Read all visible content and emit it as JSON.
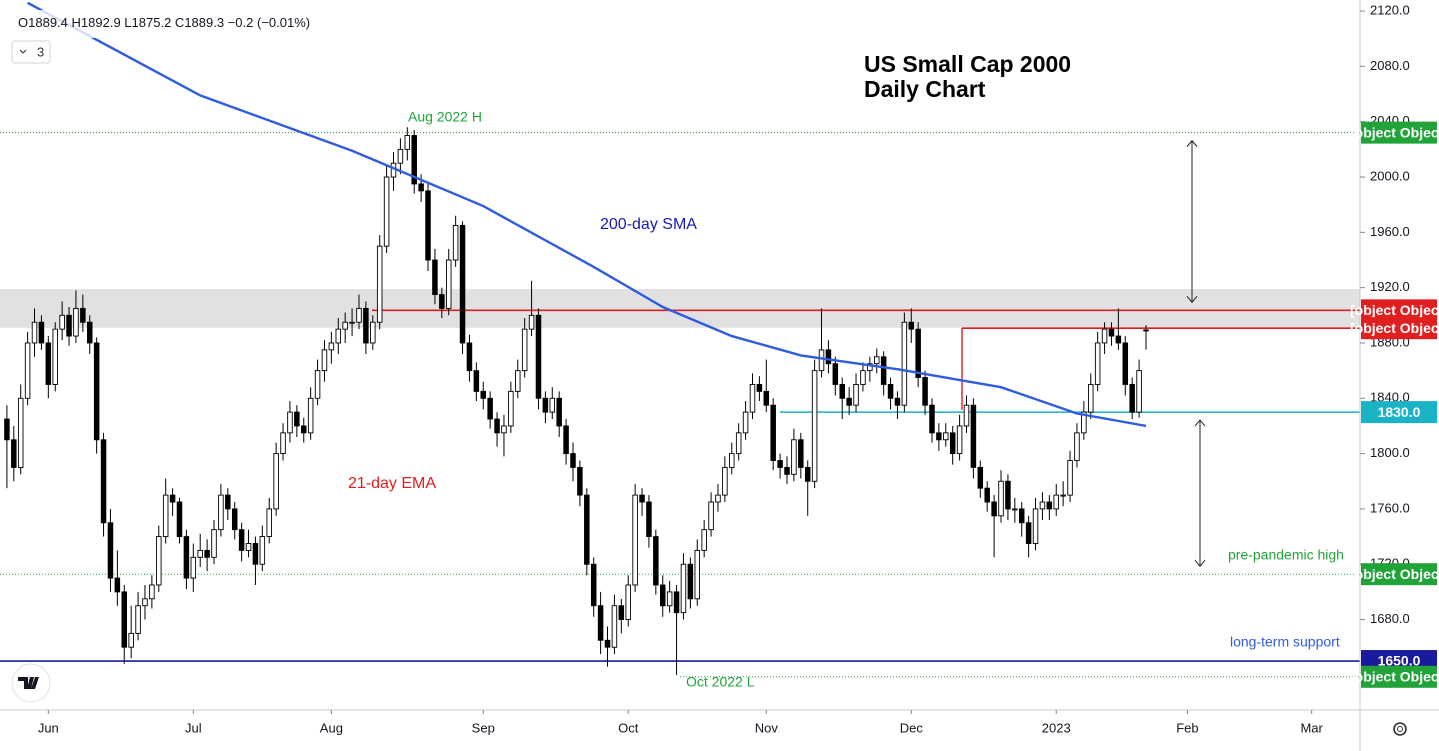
{
  "header": {
    "letters": [
      "O",
      "H",
      "L",
      "C"
    ],
    "change": "−0.2",
    "change_pct": "(−0.01%)",
    "indicators": "3"
  },
  "chart_data": {
    "type": "candlestick",
    "title": "US Small Cap 2000",
    "subtitle": "Daily Chart",
    "annotations": [
      "Aug 2022 H",
      "200-day SMA",
      "21-day EMA",
      "pre-pandemic high",
      "long-term support",
      "Oct 2022 L"
    ],
    "up_color": "#ffffff",
    "down_color": "#000000",
    "ylim": [
      1614.6,
      2128
    ],
    "yticks": [
      {
        "value": 1680,
        "label": "1680.0"
      },
      {
        "value": 1720,
        "label": "1720.0"
      },
      {
        "value": 1760,
        "label": "1760.0"
      },
      {
        "value": 1800,
        "label": "1800.0"
      },
      {
        "value": 1840,
        "label": "1840.0"
      },
      {
        "value": 1880,
        "label": "1880.0"
      },
      {
        "value": 1920,
        "label": "1920.0"
      },
      {
        "value": 1960,
        "label": "1960.0"
      },
      {
        "value": 2000,
        "label": "2000.0"
      },
      {
        "value": 2040,
        "label": "2040.0"
      },
      {
        "value": 2080,
        "label": "2080.0"
      },
      {
        "value": 2120,
        "label": "2120.0"
      }
    ],
    "xlim": [
      -1,
      196
    ],
    "xticks": [
      {
        "value": 6,
        "label": "Jun"
      },
      {
        "value": 27,
        "label": "Jul"
      },
      {
        "value": 47,
        "label": "Aug"
      },
      {
        "value": 69,
        "label": "Sep"
      },
      {
        "value": 90,
        "label": "Oct"
      },
      {
        "value": 110,
        "label": "Nov"
      },
      {
        "value": 131,
        "label": "Dec"
      },
      {
        "value": 152,
        "label": "2023"
      },
      {
        "value": 171,
        "label": "Feb"
      },
      {
        "value": 189,
        "label": "Mar"
      }
    ],
    "zone": [
      1891,
      1919
    ],
    "sma": {
      "color": "#2f5be0",
      "x": [
        3,
        28,
        50,
        69,
        85,
        95,
        105,
        115,
        129,
        144,
        155,
        165
      ],
      "values": [
        2126,
        2059,
        2019,
        1979,
        1935,
        1906,
        1885,
        1871,
        1861,
        1848,
        1829,
        1820
      ]
    },
    "levels": [
      {
        "value": 2032.1,
        "color": "#21a33a",
        "style": "dotted"
      },
      {
        "value": 1903.6,
        "color": "#e02020",
        "style": "solid"
      },
      {
        "value": 1890.7,
        "color": "#e02020",
        "style": "solid"
      },
      {
        "value": 1830,
        "label": "1830.0",
        "color": "#1ab3c6",
        "style": "solid"
      },
      {
        "value": 1712.8,
        "color": "#21a33a",
        "style": "dotted"
      },
      {
        "value": 1650,
        "label": "1650.0",
        "color": "#1a1a9e",
        "style": "solid"
      },
      {
        "value": 1638.6,
        "color": "#21a33a",
        "style": "dotted"
      }
    ],
    "ohlc": [
      [
        1825,
        1835,
        1775,
        1810
      ],
      [
        1810,
        1820,
        1780,
        1790
      ],
      [
        1790,
        1850,
        1785,
        1840
      ],
      [
        1840,
        1888,
        1835,
        1880
      ],
      [
        1880,
        1905,
        1870,
        1895
      ],
      [
        1895,
        1900,
        1875,
        1880
      ],
      [
        1880,
        1885,
        1840,
        1850
      ],
      [
        1850,
        1895,
        1845,
        1890
      ],
      [
        1890,
        1910,
        1882,
        1900
      ],
      [
        1900,
        1906,
        1878,
        1885
      ],
      [
        1885,
        1918,
        1880,
        1905
      ],
      [
        1905,
        1915,
        1888,
        1895
      ],
      [
        1895,
        1900,
        1872,
        1880
      ],
      [
        1880,
        1884,
        1800,
        1810
      ],
      [
        1810,
        1815,
        1740,
        1750
      ],
      [
        1750,
        1760,
        1700,
        1710
      ],
      [
        1710,
        1730,
        1690,
        1700
      ],
      [
        1700,
        1705,
        1648,
        1660
      ],
      [
        1660,
        1690,
        1652,
        1670
      ],
      [
        1670,
        1700,
        1665,
        1690
      ],
      [
        1690,
        1705,
        1680,
        1695
      ],
      [
        1695,
        1712,
        1688,
        1705
      ],
      [
        1705,
        1748,
        1700,
        1740
      ],
      [
        1740,
        1782,
        1735,
        1770
      ],
      [
        1770,
        1775,
        1755,
        1765
      ],
      [
        1765,
        1768,
        1735,
        1740
      ],
      [
        1740,
        1745,
        1702,
        1710
      ],
      [
        1710,
        1735,
        1700,
        1725
      ],
      [
        1725,
        1742,
        1718,
        1730
      ],
      [
        1730,
        1738,
        1715,
        1725
      ],
      [
        1725,
        1752,
        1720,
        1745
      ],
      [
        1745,
        1778,
        1740,
        1770
      ],
      [
        1770,
        1775,
        1752,
        1760
      ],
      [
        1760,
        1765,
        1738,
        1745
      ],
      [
        1745,
        1750,
        1722,
        1730
      ],
      [
        1730,
        1745,
        1725,
        1735
      ],
      [
        1735,
        1740,
        1705,
        1720
      ],
      [
        1720,
        1748,
        1715,
        1740
      ],
      [
        1740,
        1768,
        1735,
        1760
      ],
      [
        1760,
        1808,
        1755,
        1800
      ],
      [
        1800,
        1822,
        1795,
        1815
      ],
      [
        1815,
        1838,
        1808,
        1830
      ],
      [
        1830,
        1835,
        1812,
        1820
      ],
      [
        1820,
        1826,
        1808,
        1815
      ],
      [
        1815,
        1848,
        1810,
        1840
      ],
      [
        1840,
        1868,
        1835,
        1860
      ],
      [
        1860,
        1882,
        1852,
        1875
      ],
      [
        1875,
        1888,
        1865,
        1880
      ],
      [
        1880,
        1898,
        1872,
        1890
      ],
      [
        1890,
        1902,
        1880,
        1895
      ],
      [
        1895,
        1905,
        1885,
        1895
      ],
      [
        1895,
        1915,
        1890,
        1905
      ],
      [
        1905,
        1910,
        1872,
        1880
      ],
      [
        1880,
        1900,
        1875,
        1895
      ],
      [
        1895,
        1958,
        1890,
        1950
      ],
      [
        1950,
        2008,
        1945,
        2000
      ],
      [
        2000,
        2018,
        1990,
        2010
      ],
      [
        2010,
        2028,
        2002,
        2020
      ],
      [
        2020,
        2036,
        2012,
        2030
      ],
      [
        2030,
        2034,
        1988,
        1995
      ],
      [
        1995,
        2002,
        1982,
        1990
      ],
      [
        1990,
        1995,
        1932,
        1940
      ],
      [
        1940,
        1948,
        1908,
        1915
      ],
      [
        1915,
        1920,
        1898,
        1905
      ],
      [
        1905,
        1948,
        1900,
        1940
      ],
      [
        1940,
        1972,
        1935,
        1965
      ],
      [
        1965,
        1968,
        1872,
        1880
      ],
      [
        1880,
        1886,
        1852,
        1860
      ],
      [
        1860,
        1866,
        1838,
        1845
      ],
      [
        1845,
        1852,
        1832,
        1840
      ],
      [
        1840,
        1845,
        1818,
        1825
      ],
      [
        1825,
        1830,
        1805,
        1815
      ],
      [
        1815,
        1828,
        1798,
        1820
      ],
      [
        1820,
        1852,
        1815,
        1845
      ],
      [
        1845,
        1868,
        1840,
        1860
      ],
      [
        1860,
        1898,
        1855,
        1890
      ],
      [
        1890,
        1925,
        1885,
        1900
      ],
      [
        1900,
        1905,
        1832,
        1840
      ],
      [
        1840,
        1845,
        1822,
        1830
      ],
      [
        1830,
        1848,
        1825,
        1840
      ],
      [
        1840,
        1845,
        1812,
        1820
      ],
      [
        1820,
        1825,
        1792,
        1800
      ],
      [
        1800,
        1808,
        1780,
        1790
      ],
      [
        1790,
        1795,
        1762,
        1770
      ],
      [
        1770,
        1775,
        1712,
        1720
      ],
      [
        1720,
        1725,
        1682,
        1690
      ],
      [
        1690,
        1700,
        1655,
        1665
      ],
      [
        1665,
        1675,
        1646,
        1660
      ],
      [
        1660,
        1698,
        1655,
        1690
      ],
      [
        1690,
        1695,
        1670,
        1680
      ],
      [
        1680,
        1712,
        1675,
        1705
      ],
      [
        1705,
        1778,
        1700,
        1770
      ],
      [
        1770,
        1775,
        1755,
        1765
      ],
      [
        1765,
        1770,
        1732,
        1740
      ],
      [
        1740,
        1745,
        1698,
        1705
      ],
      [
        1705,
        1712,
        1682,
        1690
      ],
      [
        1690,
        1708,
        1685,
        1700
      ],
      [
        1700,
        1705,
        1640,
        1685
      ],
      [
        1685,
        1728,
        1680,
        1720
      ],
      [
        1720,
        1725,
        1688,
        1695
      ],
      [
        1695,
        1738,
        1690,
        1730
      ],
      [
        1730,
        1752,
        1725,
        1745
      ],
      [
        1745,
        1772,
        1740,
        1765
      ],
      [
        1765,
        1778,
        1758,
        1770
      ],
      [
        1770,
        1798,
        1765,
        1790
      ],
      [
        1790,
        1808,
        1785,
        1800
      ],
      [
        1800,
        1822,
        1795,
        1815
      ],
      [
        1815,
        1838,
        1810,
        1830
      ],
      [
        1830,
        1858,
        1825,
        1850
      ],
      [
        1850,
        1856,
        1838,
        1845
      ],
      [
        1845,
        1868,
        1830,
        1835
      ],
      [
        1835,
        1840,
        1788,
        1795
      ],
      [
        1795,
        1800,
        1782,
        1790
      ],
      [
        1790,
        1798,
        1778,
        1785
      ],
      [
        1785,
        1818,
        1780,
        1810
      ],
      [
        1810,
        1815,
        1782,
        1790
      ],
      [
        1790,
        1795,
        1755,
        1780
      ],
      [
        1780,
        1868,
        1775,
        1860
      ],
      [
        1860,
        1905,
        1855,
        1875
      ],
      [
        1875,
        1882,
        1858,
        1865
      ],
      [
        1865,
        1870,
        1842,
        1850
      ],
      [
        1850,
        1855,
        1825,
        1840
      ],
      [
        1840,
        1848,
        1828,
        1835
      ],
      [
        1835,
        1858,
        1830,
        1850
      ],
      [
        1850,
        1866,
        1845,
        1860
      ],
      [
        1860,
        1870,
        1852,
        1865
      ],
      [
        1865,
        1876,
        1858,
        1870
      ],
      [
        1870,
        1874,
        1842,
        1850
      ],
      [
        1850,
        1855,
        1832,
        1840
      ],
      [
        1840,
        1845,
        1825,
        1835
      ],
      [
        1835,
        1902,
        1830,
        1895
      ],
      [
        1895,
        1905,
        1880,
        1890
      ],
      [
        1890,
        1895,
        1848,
        1855
      ],
      [
        1855,
        1860,
        1828,
        1835
      ],
      [
        1835,
        1840,
        1808,
        1815
      ],
      [
        1815,
        1822,
        1802,
        1810
      ],
      [
        1810,
        1822,
        1805,
        1815
      ],
      [
        1815,
        1820,
        1792,
        1800
      ],
      [
        1800,
        1828,
        1795,
        1820
      ],
      [
        1820,
        1842,
        1815,
        1835
      ],
      [
        1835,
        1840,
        1782,
        1790
      ],
      [
        1790,
        1795,
        1768,
        1775
      ],
      [
        1775,
        1780,
        1758,
        1765
      ],
      [
        1765,
        1770,
        1725,
        1755
      ],
      [
        1755,
        1788,
        1750,
        1780
      ],
      [
        1780,
        1785,
        1752,
        1760
      ],
      [
        1760,
        1768,
        1750,
        1760
      ],
      [
        1760,
        1765,
        1740,
        1750
      ],
      [
        1750,
        1755,
        1725,
        1735
      ],
      [
        1735,
        1768,
        1730,
        1760
      ],
      [
        1760,
        1772,
        1752,
        1765
      ],
      [
        1765,
        1770,
        1752,
        1760
      ],
      [
        1760,
        1778,
        1755,
        1770
      ],
      [
        1770,
        1780,
        1762,
        1770
      ],
      [
        1770,
        1802,
        1765,
        1795
      ],
      [
        1795,
        1822,
        1790,
        1815
      ],
      [
        1815,
        1838,
        1810,
        1830
      ],
      [
        1830,
        1858,
        1825,
        1850
      ],
      [
        1850,
        1888,
        1845,
        1880
      ],
      [
        1880,
        1895,
        1872,
        1890
      ],
      [
        1890,
        1895,
        1878,
        1885
      ],
      [
        1885,
        1905,
        1875,
        1880
      ],
      [
        1880,
        1885,
        1842,
        1850
      ],
      [
        1850,
        1855,
        1825,
        1830
      ],
      [
        1830,
        1868,
        1826,
        1860
      ],
      [
        1889.4,
        1892.9,
        1875.2,
        1889.3
      ]
    ]
  }
}
